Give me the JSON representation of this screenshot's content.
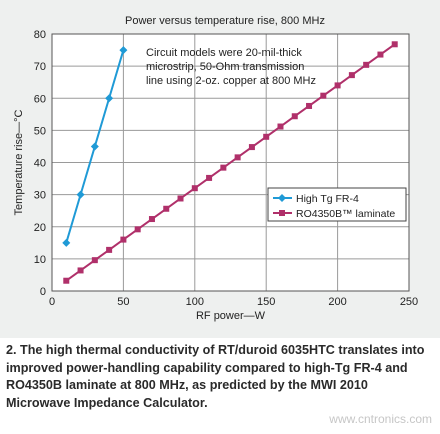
{
  "chart_data": {
    "type": "line",
    "title": "Power versus temperature rise, 800 MHz",
    "xlabel": "RF power—W",
    "ylabel": "Temperature rise—°C",
    "xlim": [
      0,
      250
    ],
    "ylim": [
      0,
      80
    ],
    "xticks": [
      0,
      50,
      100,
      150,
      200,
      250
    ],
    "yticks": [
      0,
      10,
      20,
      30,
      40,
      50,
      60,
      70,
      80
    ],
    "grid": true,
    "legend_position": "right",
    "annotation": [
      "Circuit models were 20-mil-thick",
      "microstrip, 50-Ohm transmission",
      "line using 2-oz. copper at 800 MHz"
    ],
    "series": [
      {
        "name": "High Tg FR-4",
        "color": "#1f9ad6",
        "marker": "diamond",
        "x": [
          10,
          20,
          30,
          40,
          50
        ],
        "y": [
          15,
          30,
          45,
          60,
          75
        ]
      },
      {
        "name": "RO4350B™ laminate",
        "color": "#b0306a",
        "marker": "square",
        "x": [
          10,
          20,
          30,
          40,
          50,
          60,
          70,
          80,
          90,
          100,
          110,
          120,
          130,
          140,
          150,
          160,
          170,
          180,
          190,
          200,
          210,
          220,
          230,
          240
        ],
        "y": [
          3.2,
          6.4,
          9.6,
          12.8,
          16,
          19.2,
          22.4,
          25.6,
          28.8,
          32,
          35.2,
          38.4,
          41.6,
          44.8,
          48,
          51.2,
          54.4,
          57.6,
          60.8,
          64,
          67.2,
          70.4,
          73.6,
          76.8
        ]
      }
    ]
  },
  "colors": {
    "panel_background": "#eef0ef",
    "plot_background": "#ffffff",
    "grid": "#9a9a9a",
    "text": "#222222"
  },
  "caption": "2. The high thermal conductivity of RT/duroid 6035HTC translates into improved power-handling capability compared to high-Tg FR-4 and RO4350B laminate at 800 MHz, as predicted by the MWI 2010 Microwave Impedance Calculator.",
  "watermark": "www.cntronics.com"
}
